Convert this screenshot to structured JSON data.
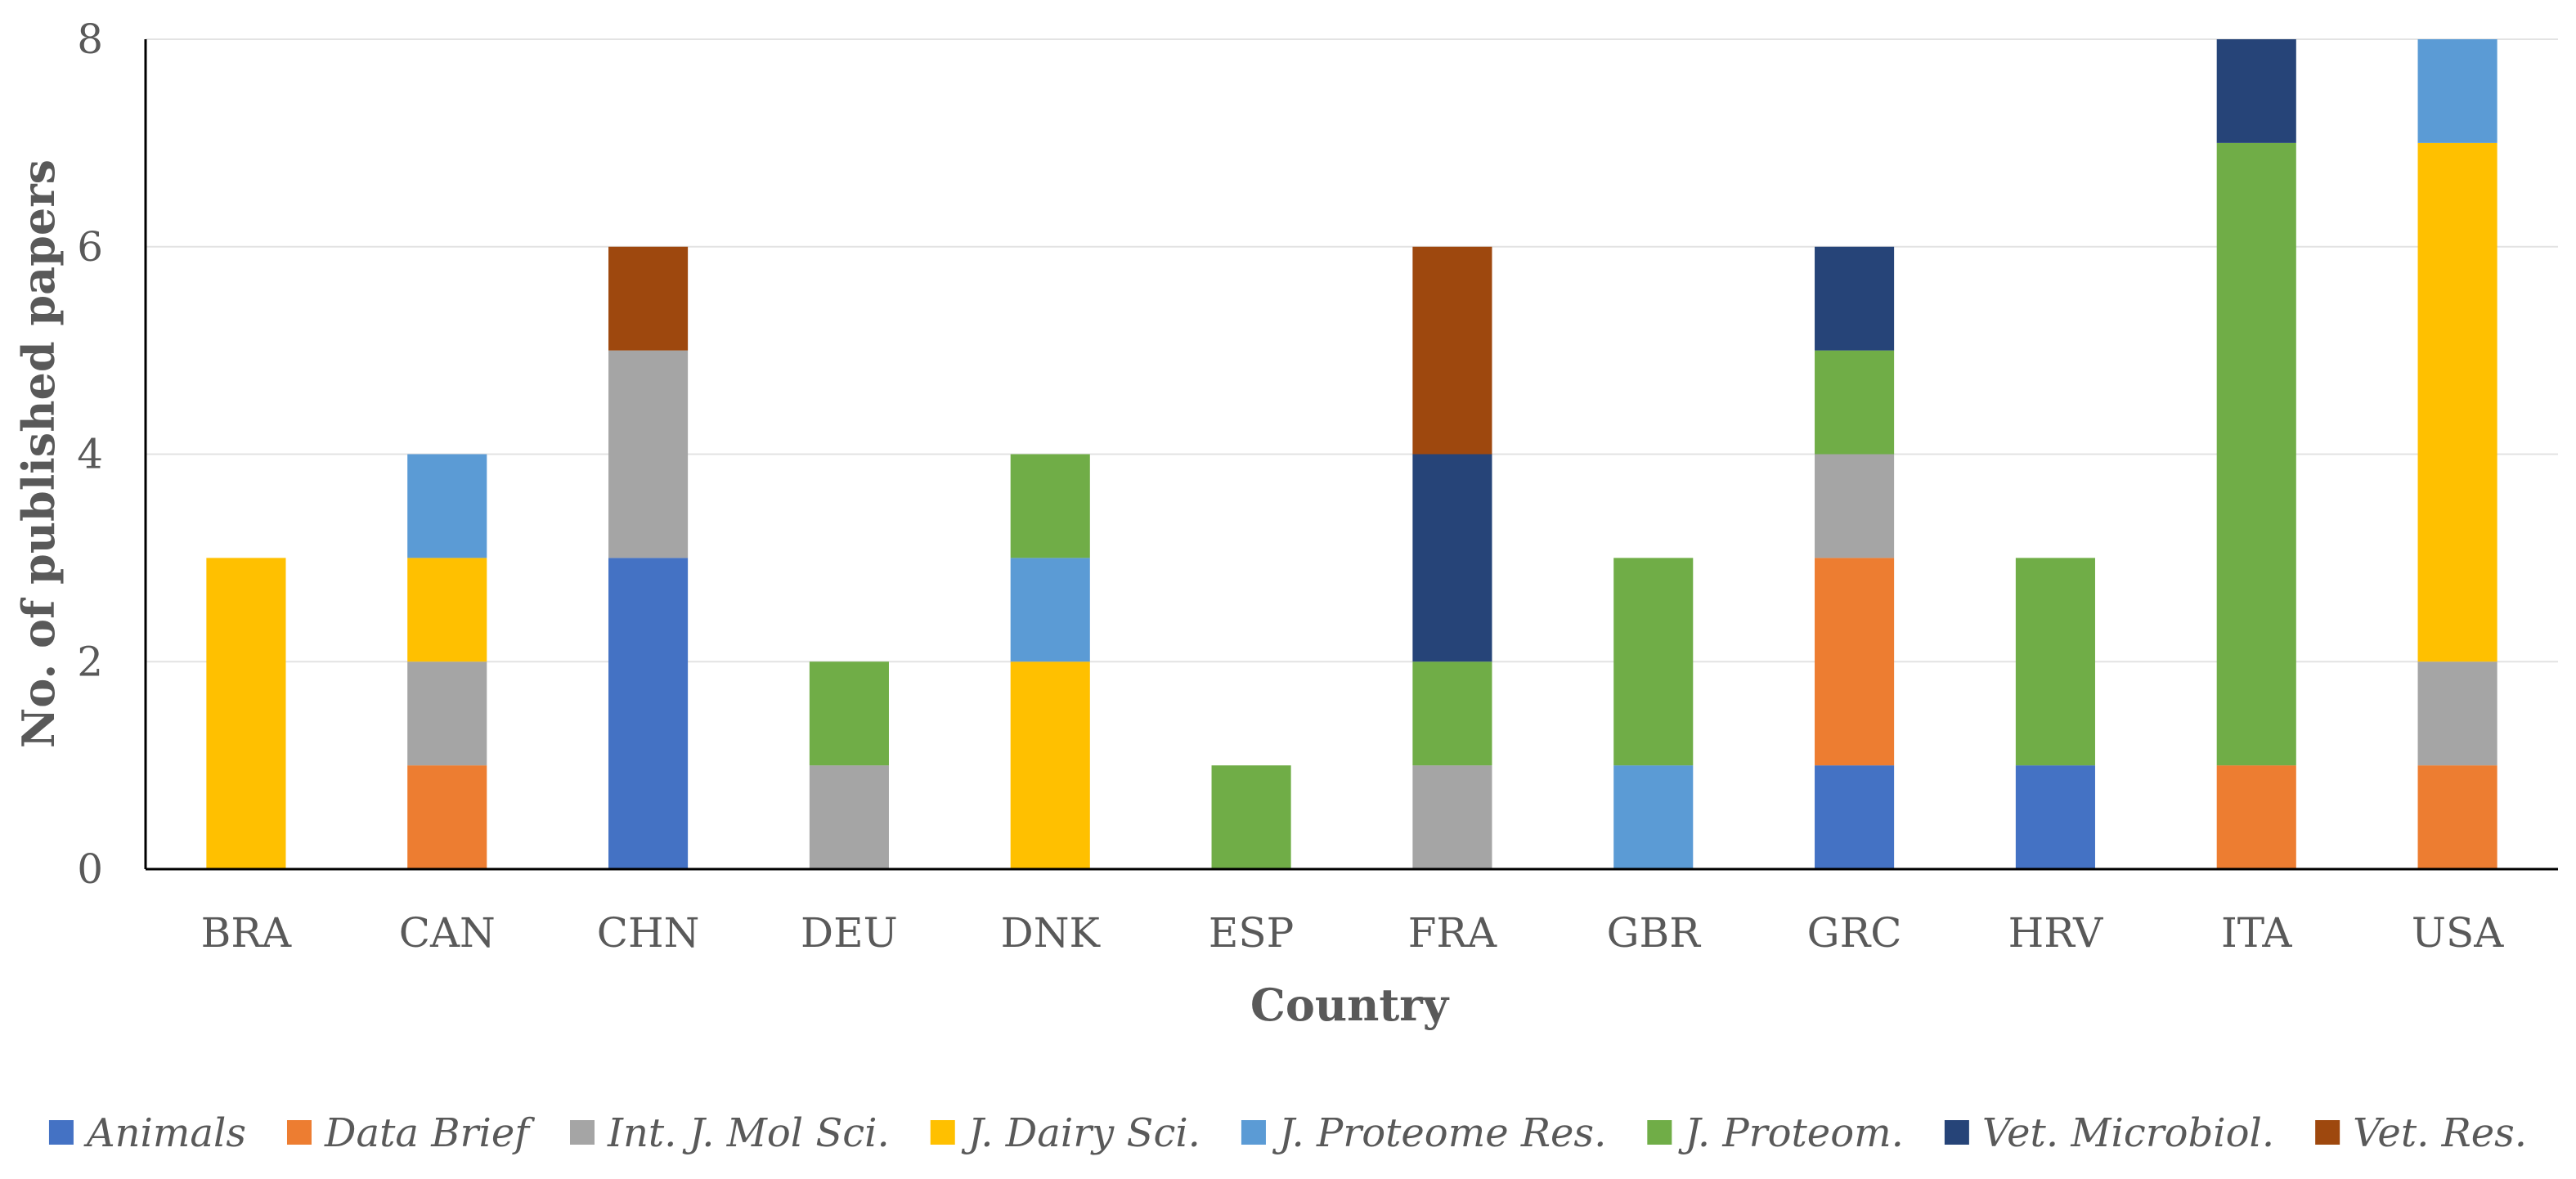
{
  "chart_data": {
    "type": "bar",
    "stacked": true,
    "title": "",
    "xlabel": "Country",
    "ylabel": "No. of published papers",
    "ylim": [
      0,
      8
    ],
    "yticks": [
      0,
      2,
      4,
      6,
      8
    ],
    "grid": true,
    "legend_position": "bottom",
    "categories": [
      "BRA",
      "CAN",
      "CHN",
      "DEU",
      "DNK",
      "ESP",
      "FRA",
      "GBR",
      "GRC",
      "HRV",
      "ITA",
      "USA"
    ],
    "series": [
      {
        "name": "Animals",
        "color": "#4472C4",
        "values": [
          0,
          0,
          3,
          0,
          0,
          0,
          0,
          0,
          1,
          1,
          0,
          0
        ]
      },
      {
        "name": "Data Brief",
        "color": "#ED7D31",
        "values": [
          0,
          1,
          0,
          0,
          0,
          0,
          0,
          0,
          2,
          0,
          1,
          1
        ]
      },
      {
        "name": "Int. J. Mol Sci.",
        "color": "#A5A5A5",
        "values": [
          0,
          1,
          2,
          1,
          0,
          0,
          1,
          0,
          1,
          0,
          0,
          1
        ]
      },
      {
        "name": "J. Dairy Sci.",
        "color": "#FFC000",
        "values": [
          3,
          1,
          0,
          0,
          2,
          0,
          0,
          0,
          0,
          0,
          0,
          5
        ]
      },
      {
        "name": "J. Proteome Res.",
        "color": "#5B9BD5",
        "values": [
          0,
          1,
          0,
          0,
          1,
          0,
          0,
          1,
          0,
          0,
          0,
          1
        ]
      },
      {
        "name": "J. Proteom.",
        "color": "#70AD47",
        "values": [
          0,
          0,
          0,
          1,
          1,
          1,
          1,
          2,
          1,
          2,
          6,
          0
        ]
      },
      {
        "name": "Vet. Microbiol.",
        "color": "#264478",
        "values": [
          0,
          0,
          0,
          0,
          0,
          0,
          2,
          0,
          1,
          0,
          1,
          0
        ]
      },
      {
        "name": "Vet. Res.",
        "color": "#9E480E",
        "values": [
          0,
          0,
          1,
          0,
          0,
          0,
          2,
          0,
          0,
          0,
          0,
          0
        ]
      }
    ]
  }
}
